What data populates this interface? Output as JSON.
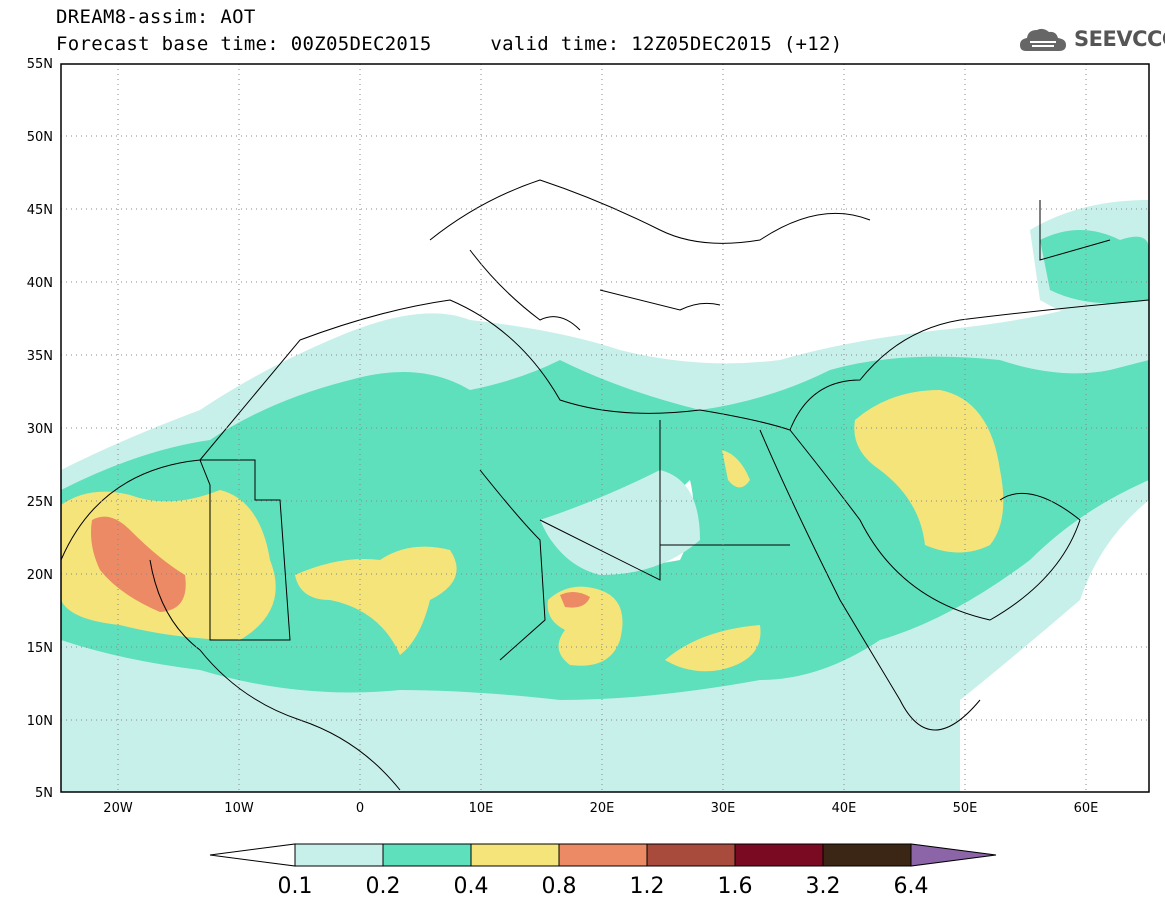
{
  "header": {
    "title_line1": "DREAM8-assim: AOT",
    "title_line2": "Forecast base time: 00Z05DEC2015     valid time: 12Z05DEC2015 (+12)",
    "logo_text": "SEEVCCC"
  },
  "map": {
    "variable": "AOT",
    "lat_labels": [
      "55N",
      "50N",
      "45N",
      "40N",
      "35N",
      "30N",
      "25N",
      "20N",
      "15N",
      "10N",
      "5N"
    ],
    "lon_labels": [
      "20W",
      "10W",
      "0",
      "10E",
      "20E",
      "30E",
      "40E",
      "50E",
      "60E"
    ],
    "lat_range": [
      5,
      55
    ],
    "lon_range": [
      -25,
      65
    ],
    "grid": "dotted"
  },
  "colorbar": {
    "levels": [
      "0.1",
      "0.2",
      "0.4",
      "0.8",
      "1.2",
      "1.6",
      "3.2",
      "6.4"
    ],
    "colors": [
      "#ffffff",
      "#c8f0ea",
      "#5ee0bc",
      "#f5e47a",
      "#eb8a64",
      "#a84a3c",
      "#7a0a22",
      "#3b2616",
      "#8c64a8"
    ]
  }
}
